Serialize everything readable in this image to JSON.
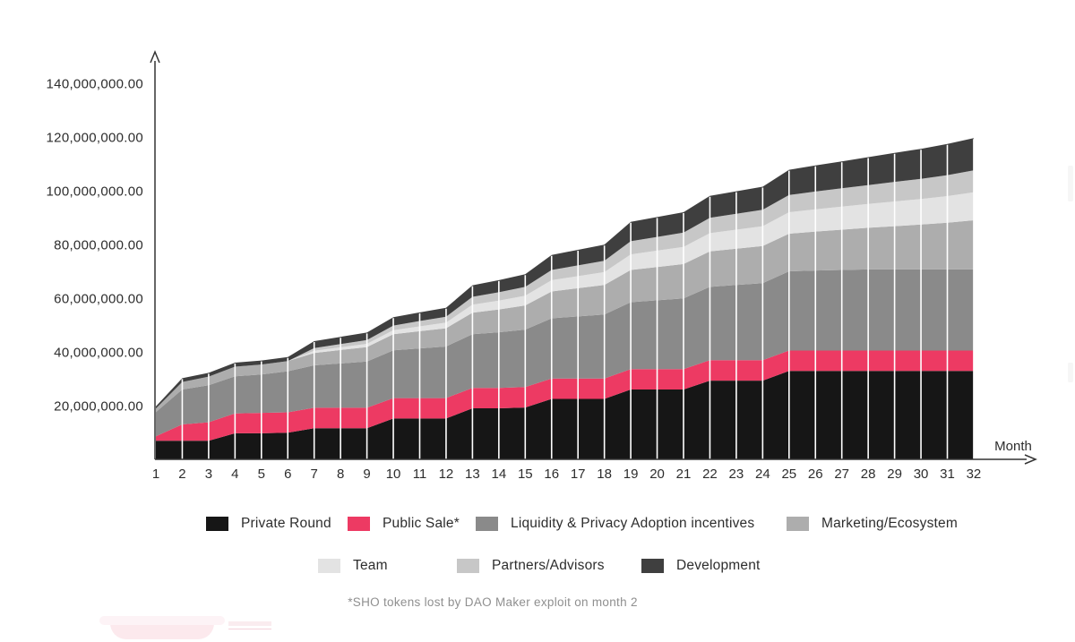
{
  "chart": {
    "y_axis": {
      "tick_labels": [
        "140,000,000.00",
        "120,000,000.00",
        "100,000,000.00",
        "80,000,000.00",
        "60,000,000.00",
        "40,000,000.00",
        "20,000,000.00"
      ],
      "tick_values": [
        140000000,
        120000000,
        100000000,
        80000000,
        60000000,
        40000000,
        20000000
      ]
    },
    "x_axis": {
      "title": "Month"
    },
    "footnote": "*SHO tokens lost by DAO Maker exploit on month 2",
    "axis_color": "#333333",
    "gridline_color": "#ffffff",
    "text_color": "#2d2d2d"
  },
  "chart_data": {
    "type": "area",
    "stacked": true,
    "title": "",
    "xlabel": "Month",
    "ylabel": "",
    "ylim": [
      0,
      140000000
    ],
    "x": [
      1,
      2,
      3,
      4,
      5,
      6,
      7,
      8,
      9,
      10,
      11,
      12,
      13,
      14,
      15,
      16,
      17,
      18,
      19,
      20,
      21,
      22,
      23,
      24,
      25,
      26,
      27,
      28,
      29,
      30,
      31,
      32
    ],
    "legend_position": "bottom",
    "grid": "vertical white month separators over the areas",
    "series": [
      {
        "name": "Private Round",
        "color": "#161616",
        "values": [
          6900000,
          6900000,
          6900000,
          9700000,
          9700000,
          9900000,
          11600000,
          11600000,
          11600000,
          15200000,
          15200000,
          15200000,
          19000000,
          19000000,
          19300000,
          22500000,
          22500000,
          22500000,
          26000000,
          26000000,
          26000000,
          29300000,
          29300000,
          29300000,
          32900000,
          32900000,
          32900000,
          32900000,
          32900000,
          32900000,
          32900000,
          32900000
        ]
      },
      {
        "name": "Public Sale*",
        "color": "#ed3a63",
        "values": [
          1700000,
          6100000,
          6900000,
          7400000,
          7600000,
          7600000,
          7600000,
          7600000,
          7600000,
          7600000,
          7600000,
          7600000,
          7600000,
          7600000,
          7600000,
          7600000,
          7600000,
          7600000,
          7600000,
          7600000,
          7600000,
          7600000,
          7600000,
          7600000,
          7600000,
          7600000,
          7600000,
          7600000,
          7600000,
          7600000,
          7600000,
          7600000
        ]
      },
      {
        "name": "Liquidity & Privacy Adoption incentives",
        "color": "#8a8a8a",
        "values": [
          9000000,
          13000000,
          13800000,
          13800000,
          14300000,
          15300000,
          15800000,
          16500000,
          17200000,
          17800000,
          18500000,
          19200000,
          20000000,
          20700000,
          21400000,
          22400000,
          23100000,
          23800000,
          24900000,
          25600000,
          26300000,
          27300000,
          28000000,
          28700000,
          29500000,
          29800000,
          30000000,
          30200000,
          30200000,
          30200000,
          30200000,
          30200000
        ]
      },
      {
        "name": "Marketing/Ecosystem",
        "color": "#adadad",
        "values": [
          1300000,
          2800000,
          3200000,
          3600000,
          3700000,
          3800000,
          4600000,
          5000000,
          5400000,
          6000000,
          6400000,
          6800000,
          8000000,
          8500000,
          9000000,
          10000000,
          10500000,
          11000000,
          12000000,
          12400000,
          12800000,
          13200000,
          13500000,
          13800000,
          14000000,
          14500000,
          15000000,
          15500000,
          16100000,
          16700000,
          17400000,
          18300000
        ]
      },
      {
        "name": "Team",
        "color": "#e3e3e3",
        "values": [
          0,
          0,
          0,
          0,
          0,
          0,
          800000,
          1000000,
          1200000,
          1500000,
          1800000,
          2100000,
          3000000,
          3300000,
          3600000,
          4200000,
          4500000,
          4800000,
          5800000,
          6100000,
          6400000,
          6800000,
          7100000,
          7400000,
          8000000,
          8300000,
          8600000,
          8900000,
          9200000,
          9500000,
          9900000,
          10400000
        ]
      },
      {
        "name": "Partners/Advisors",
        "color": "#c7c7c7",
        "values": [
          0,
          0,
          0,
          0,
          0,
          0,
          1000000,
          1200000,
          1400000,
          1700000,
          2000000,
          2200000,
          2900000,
          3100000,
          3300000,
          3800000,
          4000000,
          4200000,
          4900000,
          5100000,
          5300000,
          5700000,
          5900000,
          6100000,
          6400000,
          6600000,
          6800000,
          7000000,
          7300000,
          7500000,
          7800000,
          8200000
        ]
      },
      {
        "name": "Development",
        "color": "#3f3f3f",
        "values": [
          800000,
          1400000,
          1400000,
          1500000,
          1500000,
          1500000,
          2600000,
          2700000,
          2800000,
          3100000,
          3200000,
          3300000,
          4300000,
          4500000,
          4700000,
          5600000,
          5800000,
          6000000,
          7200000,
          7400000,
          7600000,
          8200000,
          8400000,
          8600000,
          9400000,
          9700000,
          10000000,
          10400000,
          10800000,
          11200000,
          11600000,
          12000000
        ]
      }
    ],
    "annotation": "*SHO tokens lost by DAO Maker exploit on month 2"
  },
  "legend": {
    "row1_indices": [
      0,
      1,
      2,
      3
    ],
    "row2_indices": [
      4,
      5,
      6
    ]
  }
}
